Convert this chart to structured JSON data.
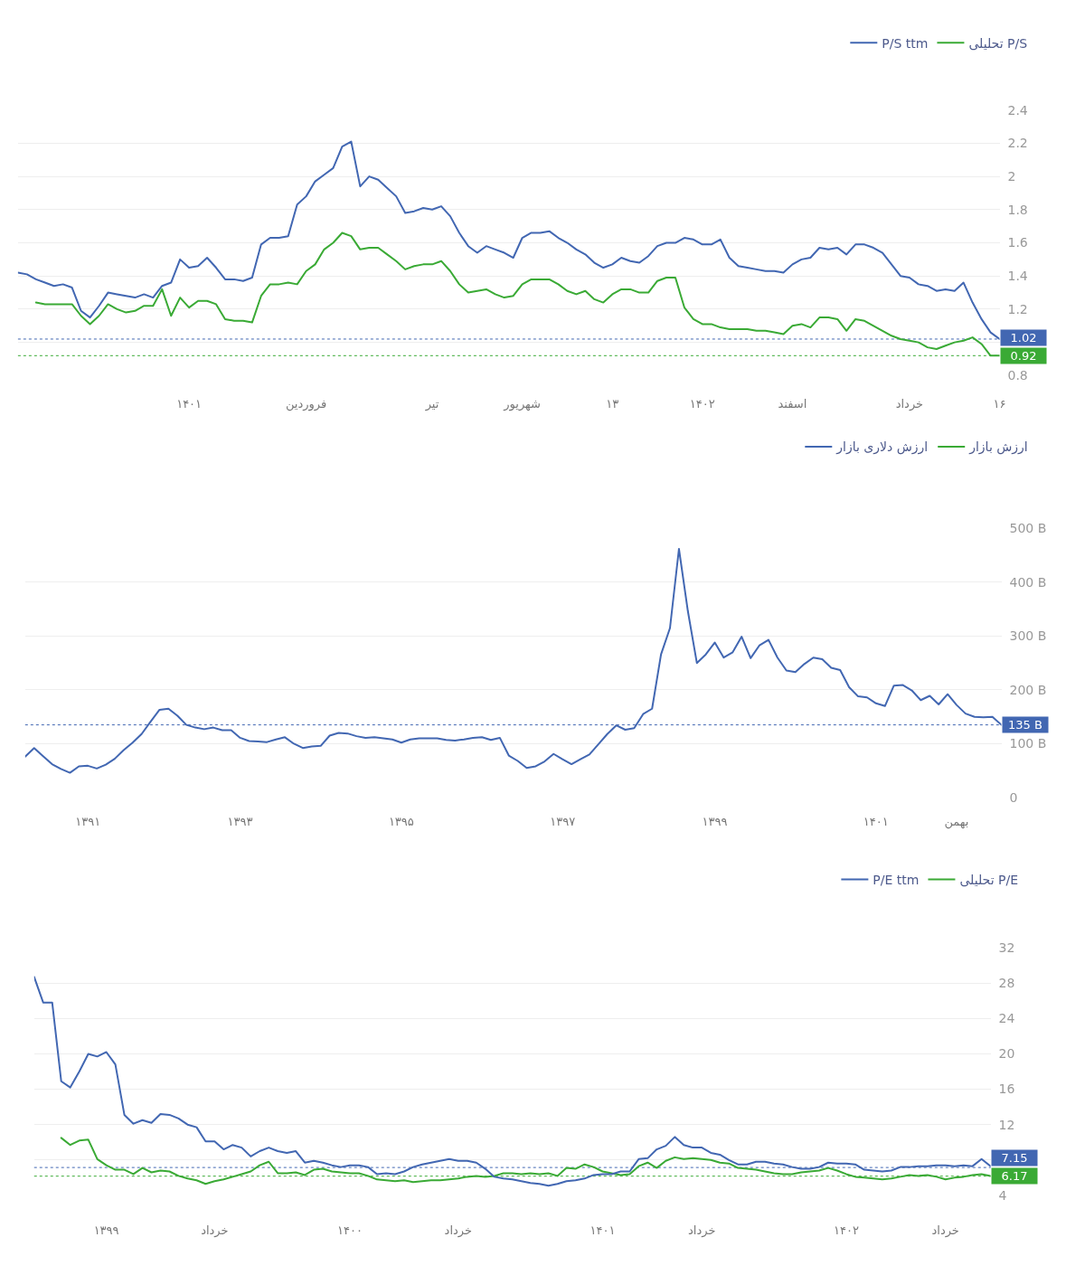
{
  "chart_data": [
    {
      "type": "line",
      "categories": [
        null,
        null,
        null,
        null,
        null,
        null,
        null,
        null,
        null,
        null,
        null,
        null,
        null,
        null,
        null,
        null,
        null,
        null,
        null,
        "۱۴۰۱",
        null,
        null,
        null,
        null,
        null,
        null,
        null,
        null,
        null,
        null,
        null,
        null,
        "فروردین",
        null,
        null,
        null,
        null,
        null,
        null,
        null,
        null,
        null,
        null,
        null,
        null,
        null,
        "تیر",
        null,
        null,
        null,
        null,
        null,
        null,
        null,
        null,
        null,
        "شهریور",
        null,
        null,
        null,
        null,
        null,
        null,
        null,
        null,
        null,
        "۱۳",
        null,
        null,
        null,
        null,
        null,
        null,
        null,
        null,
        null,
        "۱۴۰۲",
        null,
        null,
        null,
        null,
        null,
        null,
        null,
        null,
        null,
        "اسفند",
        null,
        null,
        null,
        null,
        null,
        null,
        null,
        null,
        null,
        null,
        null,
        null,
        "خرداد",
        null,
        null,
        null,
        null,
        null,
        null,
        null,
        null,
        null,
        "۱۶"
      ],
      "ylim": [
        0.8,
        2.4
      ],
      "yticks": [
        0.8,
        {
          "value": 1,
          "label": null
        },
        1.2,
        1.4,
        1.6,
        1.8,
        2,
        2.2,
        2.4
      ],
      "grid": "y",
      "legend": "top right",
      "series": [
        {
          "name": "P/S تحلیلی",
          "color": "#3aaa35",
          "values": [
            null,
            null,
            1.24,
            1.23,
            1.23,
            1.23,
            1.23,
            1.16,
            1.11,
            1.16,
            1.23,
            1.2,
            1.18,
            1.19,
            1.22,
            1.22,
            1.32,
            1.16,
            1.27,
            1.21,
            1.25,
            1.25,
            1.23,
            1.14,
            1.13,
            1.13,
            1.12,
            1.28,
            1.35,
            1.35,
            1.36,
            1.35,
            1.43,
            1.47,
            1.56,
            1.6,
            1.66,
            1.64,
            1.56,
            1.57,
            1.57,
            1.53,
            1.49,
            1.44,
            1.46,
            1.47,
            1.47,
            1.49,
            1.43,
            1.35,
            1.3,
            1.31,
            1.32,
            1.29,
            1.27,
            1.28,
            1.35,
            1.38,
            1.38,
            1.38,
            1.35,
            1.31,
            1.29,
            1.31,
            1.26,
            1.24,
            1.29,
            1.32,
            1.32,
            1.3,
            1.3,
            1.37,
            1.39,
            1.39,
            1.21,
            1.14,
            1.11,
            1.11,
            1.09,
            1.08,
            1.08,
            1.08,
            1.07,
            1.07,
            1.06,
            1.05,
            1.1,
            1.11,
            1.09,
            1.15,
            1.15,
            1.14,
            1.07,
            1.14,
            1.13,
            1.1,
            1.07,
            1.04,
            1.02,
            1.01,
            1.0,
            0.97,
            0.96,
            0.98,
            1.0,
            1.01,
            1.03,
            0.99,
            0.92,
            0.92
          ]
        },
        {
          "name": "P/S ttm",
          "color": "#4267b2",
          "values": [
            1.42,
            1.41,
            1.38,
            1.36,
            1.34,
            1.35,
            1.33,
            1.19,
            1.15,
            1.22,
            1.3,
            1.29,
            1.28,
            1.27,
            1.29,
            1.27,
            1.34,
            1.36,
            1.5,
            1.45,
            1.46,
            1.51,
            1.45,
            1.38,
            1.38,
            1.37,
            1.39,
            1.59,
            1.63,
            1.63,
            1.64,
            1.83,
            1.88,
            1.97,
            2.01,
            2.05,
            2.18,
            2.21,
            1.94,
            2.0,
            1.98,
            1.93,
            1.88,
            1.78,
            1.79,
            1.81,
            1.8,
            1.82,
            1.76,
            1.66,
            1.58,
            1.54,
            1.58,
            1.56,
            1.54,
            1.51,
            1.63,
            1.66,
            1.66,
            1.67,
            1.63,
            1.6,
            1.56,
            1.53,
            1.48,
            1.45,
            1.47,
            1.51,
            1.49,
            1.48,
            1.52,
            1.58,
            1.6,
            1.6,
            1.63,
            1.62,
            1.59,
            1.59,
            1.62,
            1.51,
            1.46,
            1.45,
            1.44,
            1.43,
            1.43,
            1.42,
            1.47,
            1.5,
            1.51,
            1.57,
            1.56,
            1.57,
            1.53,
            1.59,
            1.59,
            1.57,
            1.54,
            1.47,
            1.4,
            1.39,
            1.35,
            1.34,
            1.31,
            1.32,
            1.31,
            1.36,
            1.24,
            1.14,
            1.06,
            1.02
          ]
        }
      ],
      "ref_lines": [
        {
          "axis": "y",
          "value": 1.02,
          "label": "1.02",
          "color": "#4267b2",
          "line_style": "dotted"
        },
        {
          "axis": "y",
          "value": 0.92,
          "label": "0.92",
          "color": "#3aaa35",
          "line_style": "dotted"
        }
      ]
    },
    {
      "type": "line",
      "categories": [
        null,
        null,
        null,
        null,
        null,
        null,
        null,
        "۱۳۹۱",
        null,
        null,
        null,
        null,
        null,
        null,
        null,
        null,
        null,
        null,
        null,
        null,
        null,
        null,
        null,
        null,
        "۱۳۹۳",
        null,
        null,
        null,
        null,
        null,
        null,
        null,
        null,
        null,
        null,
        null,
        null,
        null,
        null,
        null,
        null,
        null,
        "۱۳۹۵",
        null,
        null,
        null,
        null,
        null,
        null,
        null,
        null,
        null,
        null,
        null,
        null,
        null,
        null,
        null,
        null,
        null,
        "۱۳۹۷",
        null,
        null,
        null,
        null,
        null,
        null,
        null,
        null,
        null,
        null,
        null,
        null,
        null,
        null,
        null,
        null,
        "۱۳۹۹",
        null,
        null,
        null,
        null,
        null,
        null,
        null,
        null,
        null,
        null,
        null,
        null,
        null,
        null,
        null,
        null,
        null,
        "۱۴۰۱",
        null,
        null,
        null,
        null,
        null,
        null,
        null,
        null,
        "بهمن",
        null,
        null,
        null,
        null,
        null
      ],
      "ylim": [
        0,
        500
      ],
      "yticks": [
        0,
        {
          "value": 100,
          "label": "100 B"
        },
        {
          "value": 200,
          "label": "200 B"
        },
        {
          "value": 300,
          "label": "300 B"
        },
        {
          "value": 400,
          "label": "400 B"
        },
        {
          "value": 500,
          "label": "500 B"
        }
      ],
      "grid": "y",
      "legend": "top right",
      "series": [
        {
          "name": "ارزش بازار",
          "color": "#3aaa35",
          "values": [
            null,
            null,
            null,
            null,
            null,
            null,
            null,
            null,
            null,
            null,
            null,
            null,
            null,
            null,
            null,
            null,
            null,
            null,
            null,
            null,
            null,
            null,
            null,
            null,
            null,
            null,
            null,
            null,
            null,
            null,
            null,
            null,
            null,
            null,
            null,
            null,
            null,
            null,
            null,
            null,
            null,
            null,
            null,
            null,
            null,
            null,
            null,
            null,
            null,
            null,
            null,
            null,
            null,
            null,
            null,
            null,
            null,
            null,
            null,
            null,
            null,
            null,
            null,
            null,
            null,
            null,
            null,
            null,
            null,
            null,
            null,
            null,
            null,
            null,
            null,
            null,
            null,
            null,
            null,
            null,
            null,
            null,
            null,
            null,
            null,
            null,
            null,
            null,
            null,
            null,
            null,
            null,
            null,
            null,
            null,
            null,
            null,
            null,
            null,
            null,
            null,
            null,
            null,
            null,
            null,
            null,
            null,
            null,
            null,
            null
          ]
        },
        {
          "name": "ارزش دلاری بازار",
          "color": "#4267b2",
          "values": [
            76,
            92,
            77,
            62,
            53,
            46,
            58,
            59,
            54,
            61,
            72,
            88,
            102,
            118,
            141,
            163,
            165,
            152,
            135,
            130,
            127,
            130,
            125,
            125,
            111,
            105,
            104,
            103,
            108,
            112,
            100,
            92,
            95,
            96,
            115,
            120,
            119,
            114,
            111,
            112,
            110,
            108,
            102,
            108,
            110,
            110,
            110,
            107,
            106,
            108,
            111,
            112,
            107,
            111,
            78,
            68,
            55,
            58,
            67,
            81,
            71,
            62,
            71,
            80,
            99,
            118,
            134,
            126,
            129,
            155,
            165,
            266,
            315,
            462,
            346,
            250,
            266,
            288,
            260,
            270,
            299,
            259,
            283,
            293,
            260,
            236,
            233,
            248,
            260,
            257,
            241,
            237,
            205,
            188,
            186,
            175,
            170,
            208,
            209,
            199,
            181,
            189,
            173,
            192,
            172,
            156,
            150,
            149,
            150,
            135
          ]
        }
      ],
      "ref_lines": [
        {
          "axis": "y",
          "value": 135,
          "label": "135 B",
          "color": "#4267b2",
          "line_style": "dotted"
        }
      ]
    },
    {
      "type": "line",
      "categories": [
        null,
        null,
        null,
        null,
        null,
        null,
        null,
        null,
        "۱۳۹۹",
        null,
        null,
        null,
        null,
        null,
        null,
        null,
        null,
        null,
        null,
        null,
        "خرداد",
        null,
        null,
        null,
        null,
        null,
        null,
        null,
        null,
        null,
        null,
        null,
        null,
        null,
        null,
        "۱۴۰۰",
        null,
        null,
        null,
        null,
        null,
        null,
        null,
        null,
        null,
        null,
        null,
        "خرداد",
        null,
        null,
        null,
        null,
        null,
        null,
        null,
        null,
        null,
        null,
        null,
        null,
        null,
        null,
        null,
        "۱۴۰۱",
        null,
        null,
        null,
        null,
        null,
        null,
        null,
        null,
        null,
        null,
        "خرداد",
        null,
        null,
        null,
        null,
        null,
        null,
        null,
        null,
        null,
        null,
        null,
        null,
        null,
        null,
        null,
        "۱۴۰۲",
        null,
        null,
        null,
        null,
        null,
        null,
        null,
        null,
        null,
        null,
        "خرداد",
        null,
        null,
        null,
        null,
        null
      ],
      "ylim": [
        4,
        32
      ],
      "yticks": [
        4,
        {
          "value": 8,
          "label": null
        },
        12,
        16,
        20,
        24,
        28,
        32
      ],
      "grid": "y",
      "legend": "top right",
      "series": [
        {
          "name": "P/E تحلیلی",
          "color": "#3aaa35",
          "values": [
            null,
            null,
            null,
            10.5,
            9.7,
            10.2,
            10.3,
            8.1,
            7.4,
            6.9,
            6.9,
            6.4,
            7.1,
            6.6,
            6.8,
            6.7,
            6.2,
            5.9,
            5.7,
            5.3,
            5.6,
            5.8,
            6.1,
            6.4,
            6.7,
            7.4,
            7.8,
            6.5,
            6.5,
            6.6,
            6.3,
            6.9,
            7.0,
            6.7,
            6.6,
            6.5,
            6.5,
            6.2,
            5.8,
            5.7,
            5.6,
            5.7,
            5.5,
            5.6,
            5.7,
            5.7,
            5.8,
            5.9,
            6.1,
            6.2,
            6.1,
            6.2,
            6.5,
            6.5,
            6.4,
            6.5,
            6.4,
            6.5,
            6.2,
            7.1,
            7.0,
            7.5,
            7.2,
            6.7,
            6.5,
            6.3,
            6.4,
            7.3,
            7.7,
            7.1,
            7.9,
            8.3,
            8.1,
            8.2,
            8.1,
            8.0,
            7.7,
            7.6,
            7.1,
            7.0,
            6.9,
            6.7,
            6.5,
            6.4,
            6.4,
            6.6,
            6.7,
            6.8,
            7.1,
            6.8,
            6.4,
            6.1,
            6.0,
            5.9,
            5.8,
            5.9,
            6.1,
            6.3,
            6.2,
            6.3,
            6.1,
            5.8,
            6.0,
            6.1,
            6.3,
            6.4,
            6.2
          ]
        },
        {
          "name": "P/E ttm",
          "color": "#4267b2",
          "values": [
            28.7,
            25.8,
            25.8,
            16.9,
            16.2,
            18.0,
            20.0,
            19.7,
            20.2,
            18.8,
            13.1,
            12.1,
            12.5,
            12.2,
            13.2,
            13.1,
            12.7,
            12.0,
            11.7,
            10.1,
            10.1,
            9.2,
            9.7,
            9.4,
            8.4,
            9.0,
            9.4,
            9.0,
            8.8,
            9.0,
            7.7,
            7.9,
            7.7,
            7.4,
            7.2,
            7.4,
            7.4,
            7.2,
            6.4,
            6.5,
            6.4,
            6.7,
            7.2,
            7.5,
            7.7,
            7.9,
            8.1,
            7.9,
            7.9,
            7.7,
            7.0,
            6.1,
            5.9,
            5.8,
            5.6,
            5.4,
            5.3,
            5.1,
            5.3,
            5.6,
            5.7,
            5.9,
            6.3,
            6.4,
            6.4,
            6.7,
            6.7,
            8.1,
            8.2,
            9.2,
            9.6,
            10.6,
            9.7,
            9.4,
            9.4,
            8.8,
            8.6,
            8.0,
            7.5,
            7.5,
            7.8,
            7.8,
            7.6,
            7.5,
            7.2,
            7.0,
            7.0,
            7.2,
            7.7,
            7.6,
            7.6,
            7.5,
            6.9,
            6.8,
            6.7,
            6.8,
            7.2,
            7.2,
            7.3,
            7.3,
            7.4,
            7.4,
            7.3,
            7.4,
            7.3,
            8.1,
            7.3
          ]
        }
      ],
      "ref_lines": [
        {
          "axis": "y",
          "value": 7.15,
          "label": "7.15",
          "color": "#4267b2",
          "line_style": "dotted"
        },
        {
          "axis": "y",
          "value": 6.17,
          "label": "6.17",
          "color": "#3aaa35",
          "line_style": "dotted"
        }
      ]
    }
  ]
}
